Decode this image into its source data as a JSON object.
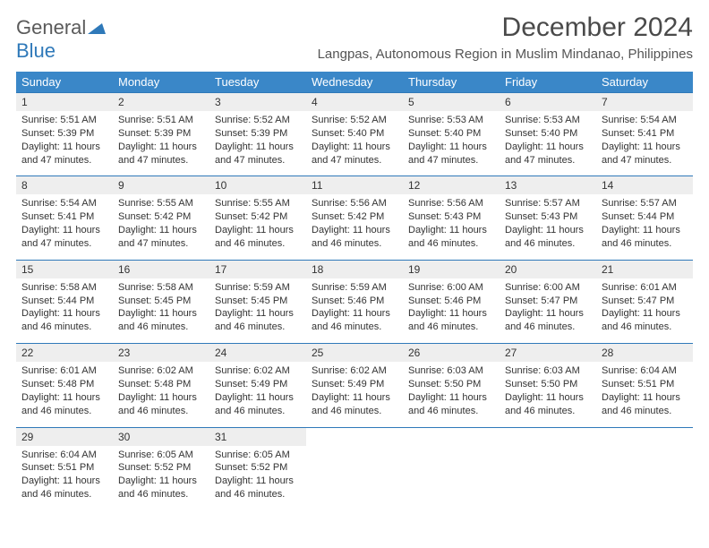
{
  "brand": {
    "general": "General",
    "blue": "Blue"
  },
  "title": "December 2024",
  "location": "Langpas, Autonomous Region in Muslim Mindanao, Philippines",
  "colors": {
    "header_bg": "#3a87c8",
    "rule": "#2f79b9",
    "daynum_bg": "#eeeeee",
    "text": "#333333",
    "brand_gray": "#5a5a5a",
    "brand_blue": "#2f79b9",
    "page_bg": "#ffffff"
  },
  "day_headers": [
    "Sunday",
    "Monday",
    "Tuesday",
    "Wednesday",
    "Thursday",
    "Friday",
    "Saturday"
  ],
  "weeks": [
    [
      {
        "n": "1",
        "sr": "Sunrise: 5:51 AM",
        "ss": "Sunset: 5:39 PM",
        "d1": "Daylight: 11 hours",
        "d2": "and 47 minutes."
      },
      {
        "n": "2",
        "sr": "Sunrise: 5:51 AM",
        "ss": "Sunset: 5:39 PM",
        "d1": "Daylight: 11 hours",
        "d2": "and 47 minutes."
      },
      {
        "n": "3",
        "sr": "Sunrise: 5:52 AM",
        "ss": "Sunset: 5:39 PM",
        "d1": "Daylight: 11 hours",
        "d2": "and 47 minutes."
      },
      {
        "n": "4",
        "sr": "Sunrise: 5:52 AM",
        "ss": "Sunset: 5:40 PM",
        "d1": "Daylight: 11 hours",
        "d2": "and 47 minutes."
      },
      {
        "n": "5",
        "sr": "Sunrise: 5:53 AM",
        "ss": "Sunset: 5:40 PM",
        "d1": "Daylight: 11 hours",
        "d2": "and 47 minutes."
      },
      {
        "n": "6",
        "sr": "Sunrise: 5:53 AM",
        "ss": "Sunset: 5:40 PM",
        "d1": "Daylight: 11 hours",
        "d2": "and 47 minutes."
      },
      {
        "n": "7",
        "sr": "Sunrise: 5:54 AM",
        "ss": "Sunset: 5:41 PM",
        "d1": "Daylight: 11 hours",
        "d2": "and 47 minutes."
      }
    ],
    [
      {
        "n": "8",
        "sr": "Sunrise: 5:54 AM",
        "ss": "Sunset: 5:41 PM",
        "d1": "Daylight: 11 hours",
        "d2": "and 47 minutes."
      },
      {
        "n": "9",
        "sr": "Sunrise: 5:55 AM",
        "ss": "Sunset: 5:42 PM",
        "d1": "Daylight: 11 hours",
        "d2": "and 47 minutes."
      },
      {
        "n": "10",
        "sr": "Sunrise: 5:55 AM",
        "ss": "Sunset: 5:42 PM",
        "d1": "Daylight: 11 hours",
        "d2": "and 46 minutes."
      },
      {
        "n": "11",
        "sr": "Sunrise: 5:56 AM",
        "ss": "Sunset: 5:42 PM",
        "d1": "Daylight: 11 hours",
        "d2": "and 46 minutes."
      },
      {
        "n": "12",
        "sr": "Sunrise: 5:56 AM",
        "ss": "Sunset: 5:43 PM",
        "d1": "Daylight: 11 hours",
        "d2": "and 46 minutes."
      },
      {
        "n": "13",
        "sr": "Sunrise: 5:57 AM",
        "ss": "Sunset: 5:43 PM",
        "d1": "Daylight: 11 hours",
        "d2": "and 46 minutes."
      },
      {
        "n": "14",
        "sr": "Sunrise: 5:57 AM",
        "ss": "Sunset: 5:44 PM",
        "d1": "Daylight: 11 hours",
        "d2": "and 46 minutes."
      }
    ],
    [
      {
        "n": "15",
        "sr": "Sunrise: 5:58 AM",
        "ss": "Sunset: 5:44 PM",
        "d1": "Daylight: 11 hours",
        "d2": "and 46 minutes."
      },
      {
        "n": "16",
        "sr": "Sunrise: 5:58 AM",
        "ss": "Sunset: 5:45 PM",
        "d1": "Daylight: 11 hours",
        "d2": "and 46 minutes."
      },
      {
        "n": "17",
        "sr": "Sunrise: 5:59 AM",
        "ss": "Sunset: 5:45 PM",
        "d1": "Daylight: 11 hours",
        "d2": "and 46 minutes."
      },
      {
        "n": "18",
        "sr": "Sunrise: 5:59 AM",
        "ss": "Sunset: 5:46 PM",
        "d1": "Daylight: 11 hours",
        "d2": "and 46 minutes."
      },
      {
        "n": "19",
        "sr": "Sunrise: 6:00 AM",
        "ss": "Sunset: 5:46 PM",
        "d1": "Daylight: 11 hours",
        "d2": "and 46 minutes."
      },
      {
        "n": "20",
        "sr": "Sunrise: 6:00 AM",
        "ss": "Sunset: 5:47 PM",
        "d1": "Daylight: 11 hours",
        "d2": "and 46 minutes."
      },
      {
        "n": "21",
        "sr": "Sunrise: 6:01 AM",
        "ss": "Sunset: 5:47 PM",
        "d1": "Daylight: 11 hours",
        "d2": "and 46 minutes."
      }
    ],
    [
      {
        "n": "22",
        "sr": "Sunrise: 6:01 AM",
        "ss": "Sunset: 5:48 PM",
        "d1": "Daylight: 11 hours",
        "d2": "and 46 minutes."
      },
      {
        "n": "23",
        "sr": "Sunrise: 6:02 AM",
        "ss": "Sunset: 5:48 PM",
        "d1": "Daylight: 11 hours",
        "d2": "and 46 minutes."
      },
      {
        "n": "24",
        "sr": "Sunrise: 6:02 AM",
        "ss": "Sunset: 5:49 PM",
        "d1": "Daylight: 11 hours",
        "d2": "and 46 minutes."
      },
      {
        "n": "25",
        "sr": "Sunrise: 6:02 AM",
        "ss": "Sunset: 5:49 PM",
        "d1": "Daylight: 11 hours",
        "d2": "and 46 minutes."
      },
      {
        "n": "26",
        "sr": "Sunrise: 6:03 AM",
        "ss": "Sunset: 5:50 PM",
        "d1": "Daylight: 11 hours",
        "d2": "and 46 minutes."
      },
      {
        "n": "27",
        "sr": "Sunrise: 6:03 AM",
        "ss": "Sunset: 5:50 PM",
        "d1": "Daylight: 11 hours",
        "d2": "and 46 minutes."
      },
      {
        "n": "28",
        "sr": "Sunrise: 6:04 AM",
        "ss": "Sunset: 5:51 PM",
        "d1": "Daylight: 11 hours",
        "d2": "and 46 minutes."
      }
    ],
    [
      {
        "n": "29",
        "sr": "Sunrise: 6:04 AM",
        "ss": "Sunset: 5:51 PM",
        "d1": "Daylight: 11 hours",
        "d2": "and 46 minutes."
      },
      {
        "n": "30",
        "sr": "Sunrise: 6:05 AM",
        "ss": "Sunset: 5:52 PM",
        "d1": "Daylight: 11 hours",
        "d2": "and 46 minutes."
      },
      {
        "n": "31",
        "sr": "Sunrise: 6:05 AM",
        "ss": "Sunset: 5:52 PM",
        "d1": "Daylight: 11 hours",
        "d2": "and 46 minutes."
      },
      null,
      null,
      null,
      null
    ]
  ]
}
